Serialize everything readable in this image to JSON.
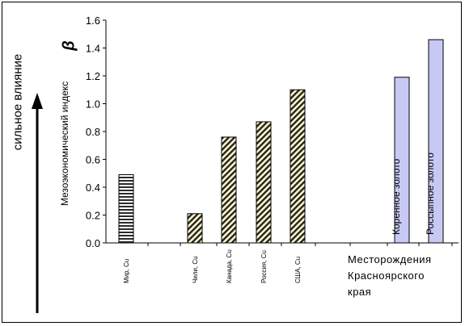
{
  "chart_data": {
    "type": "bar",
    "ylabel": "Мезоэкономический индекс",
    "y_symbol": "β",
    "side_label": "сильное влияние",
    "ylim": [
      0,
      1.6
    ],
    "yticks": [
      "0.0",
      "0.2",
      "0.4",
      "0.6",
      "0.8",
      "1.0",
      "1.2",
      "1.4",
      "1.6"
    ],
    "grid": false,
    "categories": [
      "Мир, Cu",
      "Чили, Cu",
      "Канада, Cu",
      "Россия, Cu",
      "США, Cu",
      "Коренное золото",
      "Россыпное золото"
    ],
    "values": [
      0.49,
      0.21,
      0.76,
      0.87,
      1.1,
      1.19,
      1.46
    ],
    "bar_styles": [
      "horizontal-stripes",
      "diagonal-hatch",
      "diagonal-hatch",
      "diagonal-hatch",
      "diagonal-hatch",
      "solid",
      "solid"
    ],
    "bar_text_labels": [
      "",
      "",
      "",
      "",
      "",
      "Коренное золото",
      "Россыпное золото"
    ],
    "region_label_lines": [
      "Месторождения",
      "Красноярского",
      "края"
    ]
  }
}
